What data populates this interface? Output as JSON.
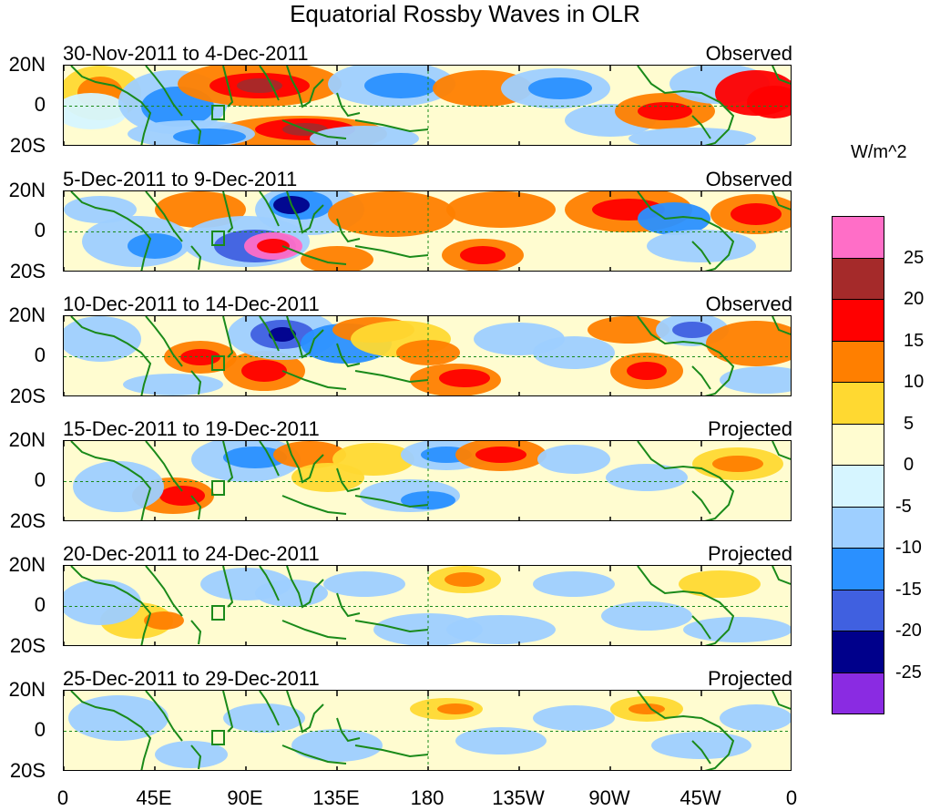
{
  "title": "Equatorial Rossby Waves in OLR",
  "panels": [
    {
      "date": "30-Nov-2011 to 4-Dec-2011",
      "status": "Observed"
    },
    {
      "date": "5-Dec-2011 to 9-Dec-2011",
      "status": "Observed"
    },
    {
      "date": "10-Dec-2011 to 14-Dec-2011",
      "status": "Observed"
    },
    {
      "date": "15-Dec-2011 to 19-Dec-2011",
      "status": "Projected"
    },
    {
      "date": "20-Dec-2011 to 24-Dec-2011",
      "status": "Projected"
    },
    {
      "date": "25-Dec-2011 to 29-Dec-2011",
      "status": "Projected"
    }
  ],
  "lat_labels": [
    "20N",
    "0",
    "20S"
  ],
  "lon_labels": [
    "0",
    "45E",
    "90E",
    "135E",
    "180",
    "135W",
    "90W",
    "45W",
    "0"
  ],
  "colorbar": {
    "units": "W/m^2",
    "labels": [
      "25",
      "20",
      "15",
      "10",
      "5",
      "0",
      "-5",
      "-10",
      "-15",
      "-20",
      "-25"
    ],
    "colors": [
      "#ff6ec7",
      "#a52a2a",
      "#ff0000",
      "#ff7f00",
      "#ffd931",
      "#fffcd0",
      "#d6f5ff",
      "#9ecfff",
      "#2a90ff",
      "#4060e0",
      "#00008b",
      "#8a2be2"
    ]
  },
  "palette": {
    "pink": "#ff6ec7",
    "brown": "#a52a2a",
    "red": "#ff0000",
    "orange": "#ff7f00",
    "yellow": "#ffd931",
    "cream": "#fffcd0",
    "pale_blue": "#d6f5ff",
    "light_blue": "#9ecfff",
    "blue": "#2a90ff",
    "royal": "#4060e0",
    "navy": "#00008b",
    "purple": "#8a2be2",
    "coast": "#1a8a1a"
  }
}
